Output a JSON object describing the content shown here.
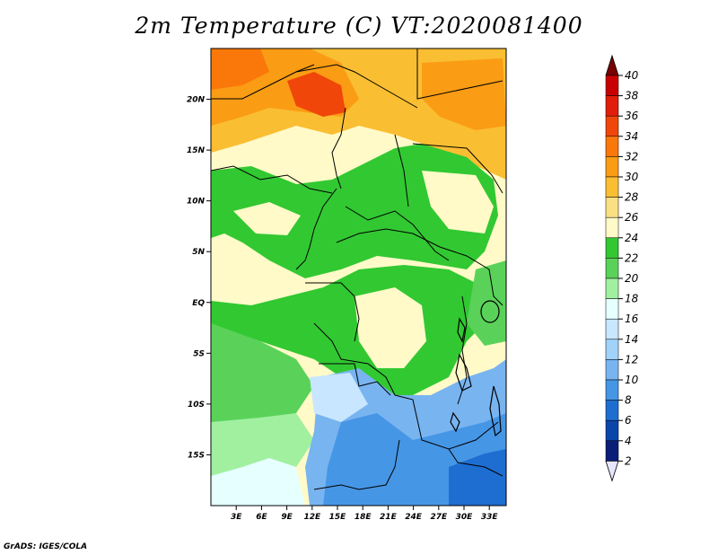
{
  "title": "2m Temperature (C) VT:2020081400",
  "credit": "GrADS: IGES/COLA",
  "chart_data": {
    "type": "heatmap",
    "title": "2m Temperature (C) VT:2020081400",
    "variable": "2m Temperature",
    "units": "C",
    "valid_time": "2020081400",
    "lon_range": [
      0,
      35
    ],
    "lat_range": [
      -20,
      25
    ],
    "x_ticks": [
      {
        "value": 3,
        "label": "3E"
      },
      {
        "value": 6,
        "label": "6E"
      },
      {
        "value": 9,
        "label": "9E"
      },
      {
        "value": 12,
        "label": "12E"
      },
      {
        "value": 15,
        "label": "15E"
      },
      {
        "value": 18,
        "label": "18E"
      },
      {
        "value": 21,
        "label": "21E"
      },
      {
        "value": 24,
        "label": "24E"
      },
      {
        "value": 27,
        "label": "27E"
      },
      {
        "value": 30,
        "label": "30E"
      },
      {
        "value": 33,
        "label": "33E"
      }
    ],
    "y_ticks": [
      {
        "value": 20,
        "label": "20N"
      },
      {
        "value": 15,
        "label": "15N"
      },
      {
        "value": 10,
        "label": "10N"
      },
      {
        "value": 5,
        "label": "5N"
      },
      {
        "value": 0,
        "label": "EQ"
      },
      {
        "value": -5,
        "label": "5S"
      },
      {
        "value": -10,
        "label": "10S"
      },
      {
        "value": -15,
        "label": "15S"
      }
    ],
    "colorbar": {
      "levels": [
        "40",
        "38",
        "36",
        "34",
        "32",
        "30",
        "28",
        "26",
        "24",
        "22",
        "20",
        "18",
        "16",
        "14",
        "12",
        "10",
        "8",
        "6",
        "4",
        "2"
      ],
      "colors": [
        "#a0001e",
        "#c80000",
        "#e01e0a",
        "#f0460a",
        "#fa780a",
        "#fa9c14",
        "#fabe32",
        "#fae082",
        "#fffac8",
        "#32c832",
        "#5ad25a",
        "#a0f0a0",
        "#e6ffff",
        "#c8e6ff",
        "#a0d2fa",
        "#78b4f0",
        "#4696e6",
        "#1e6ed2",
        "#0a46aa",
        "#0a1e78"
      ]
    }
  }
}
